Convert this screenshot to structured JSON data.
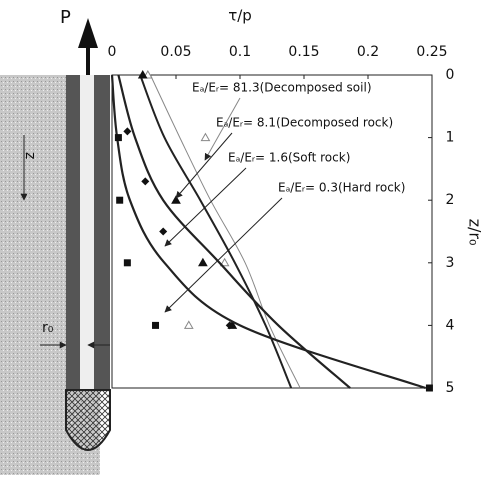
{
  "chart_data": {
    "type": "line",
    "x_label": "τ/p",
    "y_label": "z/r₀",
    "load_label": "P",
    "depth_label": "z",
    "radius_label": "r₀",
    "xlim": [
      0,
      0.25
    ],
    "xticks": [
      0,
      0.05,
      0.1,
      0.15,
      0.2,
      0.25
    ],
    "ylim": [
      0,
      5
    ],
    "yticks": [
      0,
      1,
      2,
      3,
      4,
      5
    ],
    "y_reversed": true,
    "series": [
      {
        "name": "Eₐ/Eᵣ= 81.3(Decomposed soil)",
        "color": "#888888",
        "width": 1,
        "x": [
          0.03,
          0.053,
          0.077,
          0.104,
          0.123,
          0.147
        ],
        "values": [
          0,
          1,
          2,
          3,
          4,
          5
        ],
        "marker": "open-triangle",
        "marker_x": [
          0.028,
          0.073,
          0.088,
          0.06
        ],
        "marker_values": [
          0,
          1,
          3,
          4
        ]
      },
      {
        "name": "Eₐ/Eᵣ= 8.1(Decomposed rock)",
        "color": "#222222",
        "width": 2,
        "x": [
          0.022,
          0.041,
          0.069,
          0.096,
          0.12,
          0.14
        ],
        "values": [
          0,
          1,
          2,
          3,
          4,
          5
        ],
        "marker": "triangle",
        "marker_x": [
          0.024,
          0.05,
          0.071,
          0.094
        ],
        "marker_values": [
          0,
          2,
          3,
          4
        ]
      },
      {
        "name": "Eₐ/Eᵣ= 1.6(Soft rock)",
        "color": "#222222",
        "width": 2.2,
        "x": [
          0.005,
          0.018,
          0.04,
          0.084,
          0.13,
          0.186
        ],
        "values": [
          0,
          1,
          2,
          3,
          4,
          5
        ],
        "marker": "diamond",
        "marker_x": [
          0.012,
          0.026,
          0.04,
          0.092
        ],
        "marker_values": [
          0.9,
          1.7,
          2.5,
          4
        ]
      },
      {
        "name": "Eₐ/Eᵣ= 0.3(Hard rock)",
        "color": "#222222",
        "width": 2.2,
        "x": [
          0,
          0.004,
          0.014,
          0.041,
          0.1,
          0.245
        ],
        "values": [
          0,
          1,
          2,
          3,
          4,
          5
        ],
        "marker": "square",
        "marker_x": [
          0.005,
          0.006,
          0.012,
          0.034,
          0.248
        ],
        "marker_values": [
          1,
          2,
          3,
          4,
          5
        ]
      }
    ]
  }
}
